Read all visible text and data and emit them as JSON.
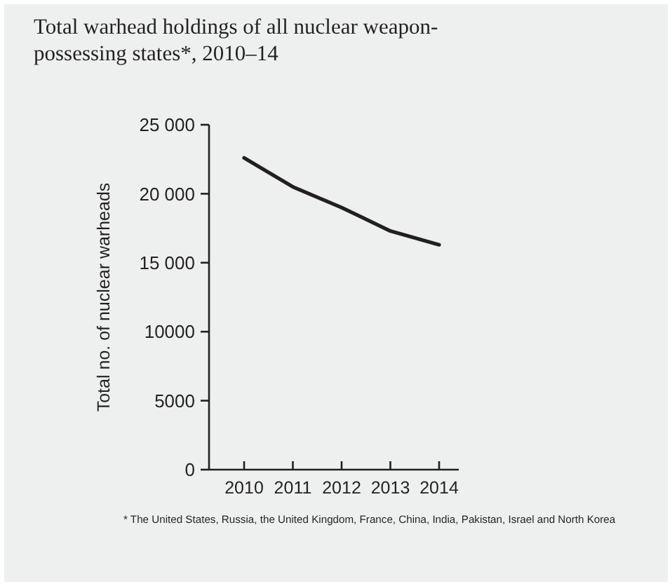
{
  "chart_data": {
    "type": "line",
    "title": "Total warhead holdings of all nuclear weapon-\npossessing states*, 2010–14",
    "ylabel": "Total no. of nuclear warheads",
    "categories": [
      "2010",
      "2011",
      "2012",
      "2013",
      "2014"
    ],
    "series": [
      {
        "color": "#231f20",
        "values": [
          22600,
          20500,
          19000,
          17300,
          16300
        ]
      }
    ],
    "ylim": [
      0,
      25000
    ],
    "yticks": [
      0,
      5000,
      {
        "value": 10000,
        "label": "10000"
      },
      {
        "value": 15000,
        "label": "15 000"
      },
      {
        "value": 20000,
        "label": "20 000"
      },
      {
        "value": 25000,
        "label": "25 000"
      }
    ],
    "grid": false,
    "marker": "none",
    "line_style": "solid",
    "annotations": [
      "* The United States, Russia, the United Kingdom, France, China, India, Pakistan, Israel and North Korea"
    ]
  }
}
